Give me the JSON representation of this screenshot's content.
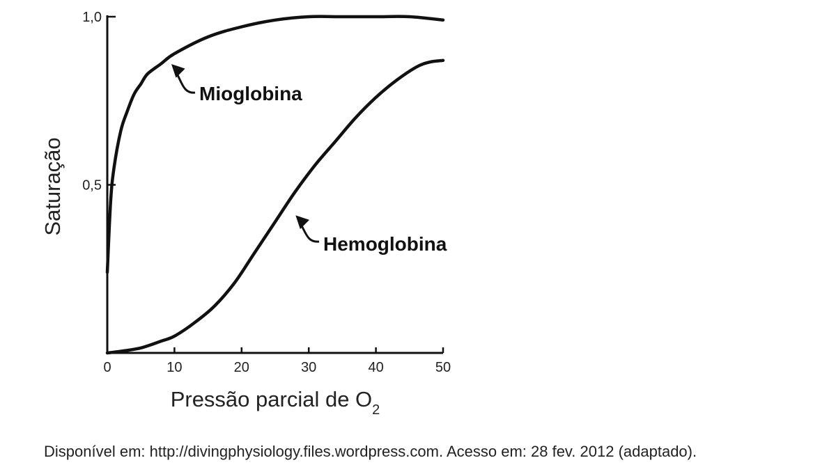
{
  "chart_data": {
    "type": "line",
    "xlabel": "Pressão parcial de O",
    "xlabel_subscript": "2",
    "ylabel": "Saturação",
    "xlim": [
      0,
      50
    ],
    "ylim": [
      0,
      1.0
    ],
    "x_ticks": [
      0,
      10,
      20,
      30,
      40,
      50
    ],
    "x_tick_labels": [
      "0",
      "10",
      "20",
      "30",
      "40",
      "50"
    ],
    "y_ticks": [
      0.5,
      1.0
    ],
    "y_tick_labels": [
      "0,5",
      "1,0"
    ],
    "grid": false,
    "series": [
      {
        "name": "Mioglobina",
        "x": [
          0,
          0.5,
          1,
          2,
          3,
          4,
          5,
          6,
          8,
          10,
          15,
          20,
          25,
          30,
          35,
          40,
          45,
          50
        ],
        "y": [
          0.24,
          0.45,
          0.55,
          0.66,
          0.72,
          0.77,
          0.8,
          0.83,
          0.86,
          0.89,
          0.94,
          0.97,
          0.99,
          1.0,
          1.0,
          1.0,
          1.0,
          0.99
        ]
      },
      {
        "name": "Hemoglobina",
        "x": [
          0,
          2,
          5,
          8,
          10,
          13,
          16,
          19,
          22,
          25,
          28,
          31,
          34,
          37,
          40,
          43,
          46,
          48,
          50
        ],
        "y": [
          0.0,
          0.005,
          0.015,
          0.035,
          0.05,
          0.09,
          0.14,
          0.21,
          0.3,
          0.39,
          0.48,
          0.56,
          0.63,
          0.7,
          0.76,
          0.81,
          0.85,
          0.865,
          0.87
        ]
      }
    ],
    "annotations": [
      {
        "text": "Mioglobina",
        "points_to": [
          9,
          0.87
        ]
      },
      {
        "text": "Hemoglobina",
        "points_to": [
          27.5,
          0.42
        ]
      }
    ]
  },
  "source": "Disponível em: http://divingphysiology.files.wordpress.com. Acesso em: 28 fev. 2012 (adaptado)."
}
